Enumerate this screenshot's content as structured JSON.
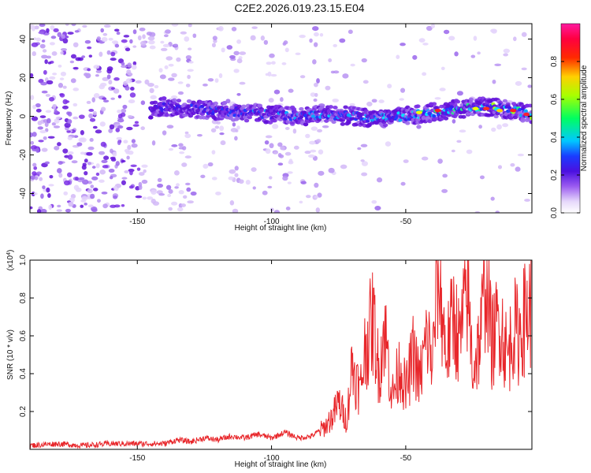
{
  "title": "C2E2.2026.019.23.15.E04",
  "chart_data": [
    {
      "type": "heatmap",
      "xlabel": "Height of straight line (km)",
      "ylabel": "Frequency (Hz)",
      "xlim": [
        -190,
        -3
      ],
      "ylim": [
        -50,
        48
      ],
      "xticks": [
        -150,
        -100,
        -50
      ],
      "yticks": [
        -40,
        -20,
        0,
        20,
        40
      ],
      "colorbar": {
        "label": "Normalized spectral amplitude",
        "range": [
          0,
          1
        ],
        "ticks": [
          "0.0",
          "0.2",
          "0.4",
          "0.6",
          "0.8"
        ],
        "tick_values": [
          0,
          0.2,
          0.4,
          0.6,
          0.8
        ],
        "colormap": [
          "#ffffff",
          "#c9a6f5",
          "#7c1fe3",
          "#2230ff",
          "#00e5ff",
          "#00ff40",
          "#f0ff00",
          "#ff2020",
          "#ff1493"
        ]
      },
      "ridge": {
        "description_values": "dominant frequency (Hz) vs height (km)",
        "x": [
          -145,
          -140,
          -130,
          -120,
          -110,
          -100,
          -90,
          -80,
          -70,
          -60,
          -50,
          -40,
          -30,
          -20,
          -10,
          -3
        ],
        "y": [
          3,
          5,
          4,
          3,
          2,
          1,
          0,
          1,
          0,
          -1,
          0,
          2,
          4,
          5,
          3,
          1
        ]
      }
    },
    {
      "type": "line",
      "xlabel": "Height of straight line (km)",
      "ylabel": "SNR (10 * v/v)",
      "scale_label": "(x10",
      "scale_exp": "4",
      "scale_close": ")",
      "xlim": [
        -190,
        -3
      ],
      "ylim": [
        0,
        1.0
      ],
      "xticks": [
        -150,
        -100,
        -50
      ],
      "yticks": [
        0.2,
        0.4,
        0.6,
        0.8,
        1.0
      ],
      "ytick_labels": [
        "0.2",
        "0.4",
        "0.6",
        "0.8",
        "1.0"
      ],
      "series": [
        {
          "color": "#e8262a",
          "x": [
            -190,
            -180,
            -170,
            -160,
            -150,
            -140,
            -135,
            -130,
            -125,
            -120,
            -115,
            -110,
            -105,
            -100,
            -95,
            -90,
            -85,
            -80,
            -77,
            -75,
            -72,
            -70,
            -67,
            -65,
            -62,
            -60,
            -58,
            -55,
            -52,
            -50,
            -47,
            -45,
            -42,
            -40,
            -38,
            -35,
            -32,
            -30,
            -27,
            -25,
            -22,
            -20,
            -18,
            -15,
            -12,
            -10,
            -8,
            -5,
            -3
          ],
          "y": [
            0.02,
            0.03,
            0.02,
            0.03,
            0.03,
            0.03,
            0.05,
            0.04,
            0.06,
            0.05,
            0.07,
            0.06,
            0.08,
            0.06,
            0.09,
            0.06,
            0.07,
            0.12,
            0.18,
            0.25,
            0.15,
            0.45,
            0.3,
            0.55,
            0.68,
            0.4,
            0.65,
            0.28,
            0.45,
            0.3,
            0.52,
            0.35,
            0.6,
            0.45,
            0.99,
            0.5,
            0.72,
            0.55,
            0.85,
            0.42,
            0.6,
            0.99,
            0.55,
            0.7,
            0.48,
            0.65,
            0.6,
            0.72,
            0.75
          ]
        }
      ]
    }
  ]
}
